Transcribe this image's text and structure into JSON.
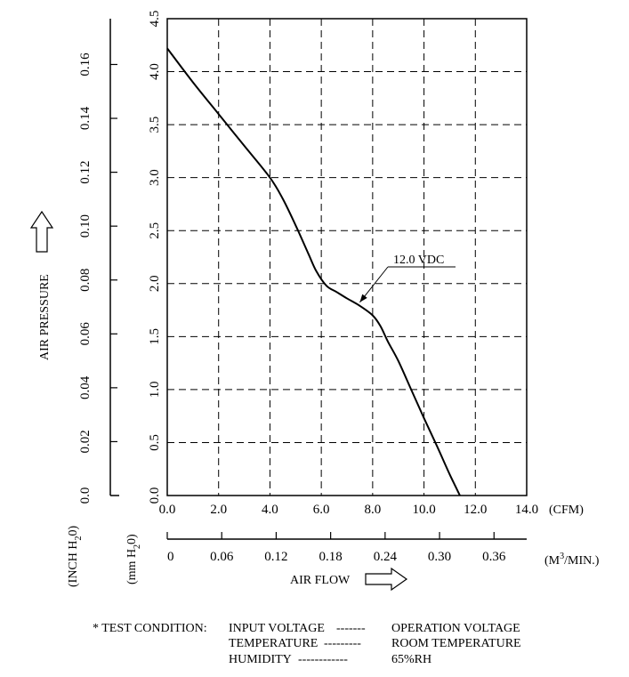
{
  "chart_data": {
    "type": "line",
    "x_axis_cfm": {
      "ticks": [
        "0.0",
        "2.0",
        "4.0",
        "6.0",
        "8.0",
        "10.0",
        "12.0",
        "14.0"
      ],
      "range": [
        0,
        14
      ],
      "unit": "(CFM)"
    },
    "x_axis_m3": {
      "ticks": [
        "0",
        "0.06",
        "0.12",
        "0.18",
        "0.24",
        "0.30",
        "0.36"
      ],
      "values": [
        0,
        0.06,
        0.12,
        0.18,
        0.24,
        0.3,
        0.36
      ],
      "unit": "(M³/MIN.)",
      "unit_base": "(M",
      "unit_sup": "3",
      "unit_tail": "/MIN.)"
    },
    "y_axis_mm": {
      "ticks": [
        "0.0",
        "0.5",
        "1.0",
        "1.5",
        "2.0",
        "2.5",
        "3.0",
        "3.5",
        "4.0",
        "4.5"
      ],
      "range": [
        0,
        4.5
      ],
      "unit": "(mm H₂0)",
      "unit_base": "(mm H",
      "unit_sub": "2",
      "unit_tail": "0)"
    },
    "y_axis_inch": {
      "ticks": [
        "0.0",
        "0.02",
        "0.04",
        "0.06",
        "0.08",
        "0.10",
        "0.12",
        "0.14",
        "0.16"
      ],
      "values": [
        0,
        0.02,
        0.04,
        0.06,
        0.08,
        0.1,
        0.12,
        0.14,
        0.16
      ],
      "unit": "(INCH H₂0)",
      "unit_base": "(INCH H",
      "unit_sub": "2",
      "unit_tail": "0)"
    },
    "ylabel": "AIR PRESSURE",
    "xlabel": "AIR FLOW",
    "grid": true,
    "series": [
      {
        "name": "12.0  VDC",
        "x": [
          0.0,
          1.0,
          2.0,
          3.0,
          4.0,
          4.5,
          5.0,
          5.5,
          5.8,
          6.2,
          6.6,
          7.0,
          7.5,
          8.0,
          8.3,
          8.6,
          9.0,
          9.5,
          10.0,
          10.5,
          11.0,
          11.4
        ],
        "y": [
          4.22,
          3.9,
          3.6,
          3.3,
          3.0,
          2.8,
          2.55,
          2.28,
          2.12,
          1.98,
          1.92,
          1.86,
          1.79,
          1.7,
          1.6,
          1.45,
          1.27,
          1.0,
          0.73,
          0.47,
          0.2,
          0.0
        ]
      }
    ],
    "annotation": {
      "text": "12.0  VDC",
      "points_to": {
        "x": 7.5,
        "y": 1.79
      }
    }
  },
  "test_condition": {
    "prefix": "*  TEST CONDITION:",
    "rows": [
      {
        "label": "INPUT VOLTAGE",
        "dashes": "-------",
        "value": "OPERATION VOLTAGE"
      },
      {
        "label": "TEMPERATURE",
        "dashes": "---------",
        "value": "ROOM TEMPERATURE"
      },
      {
        "label": "HUMIDITY",
        "dashes": "------------",
        "value": "65%RH"
      }
    ]
  }
}
